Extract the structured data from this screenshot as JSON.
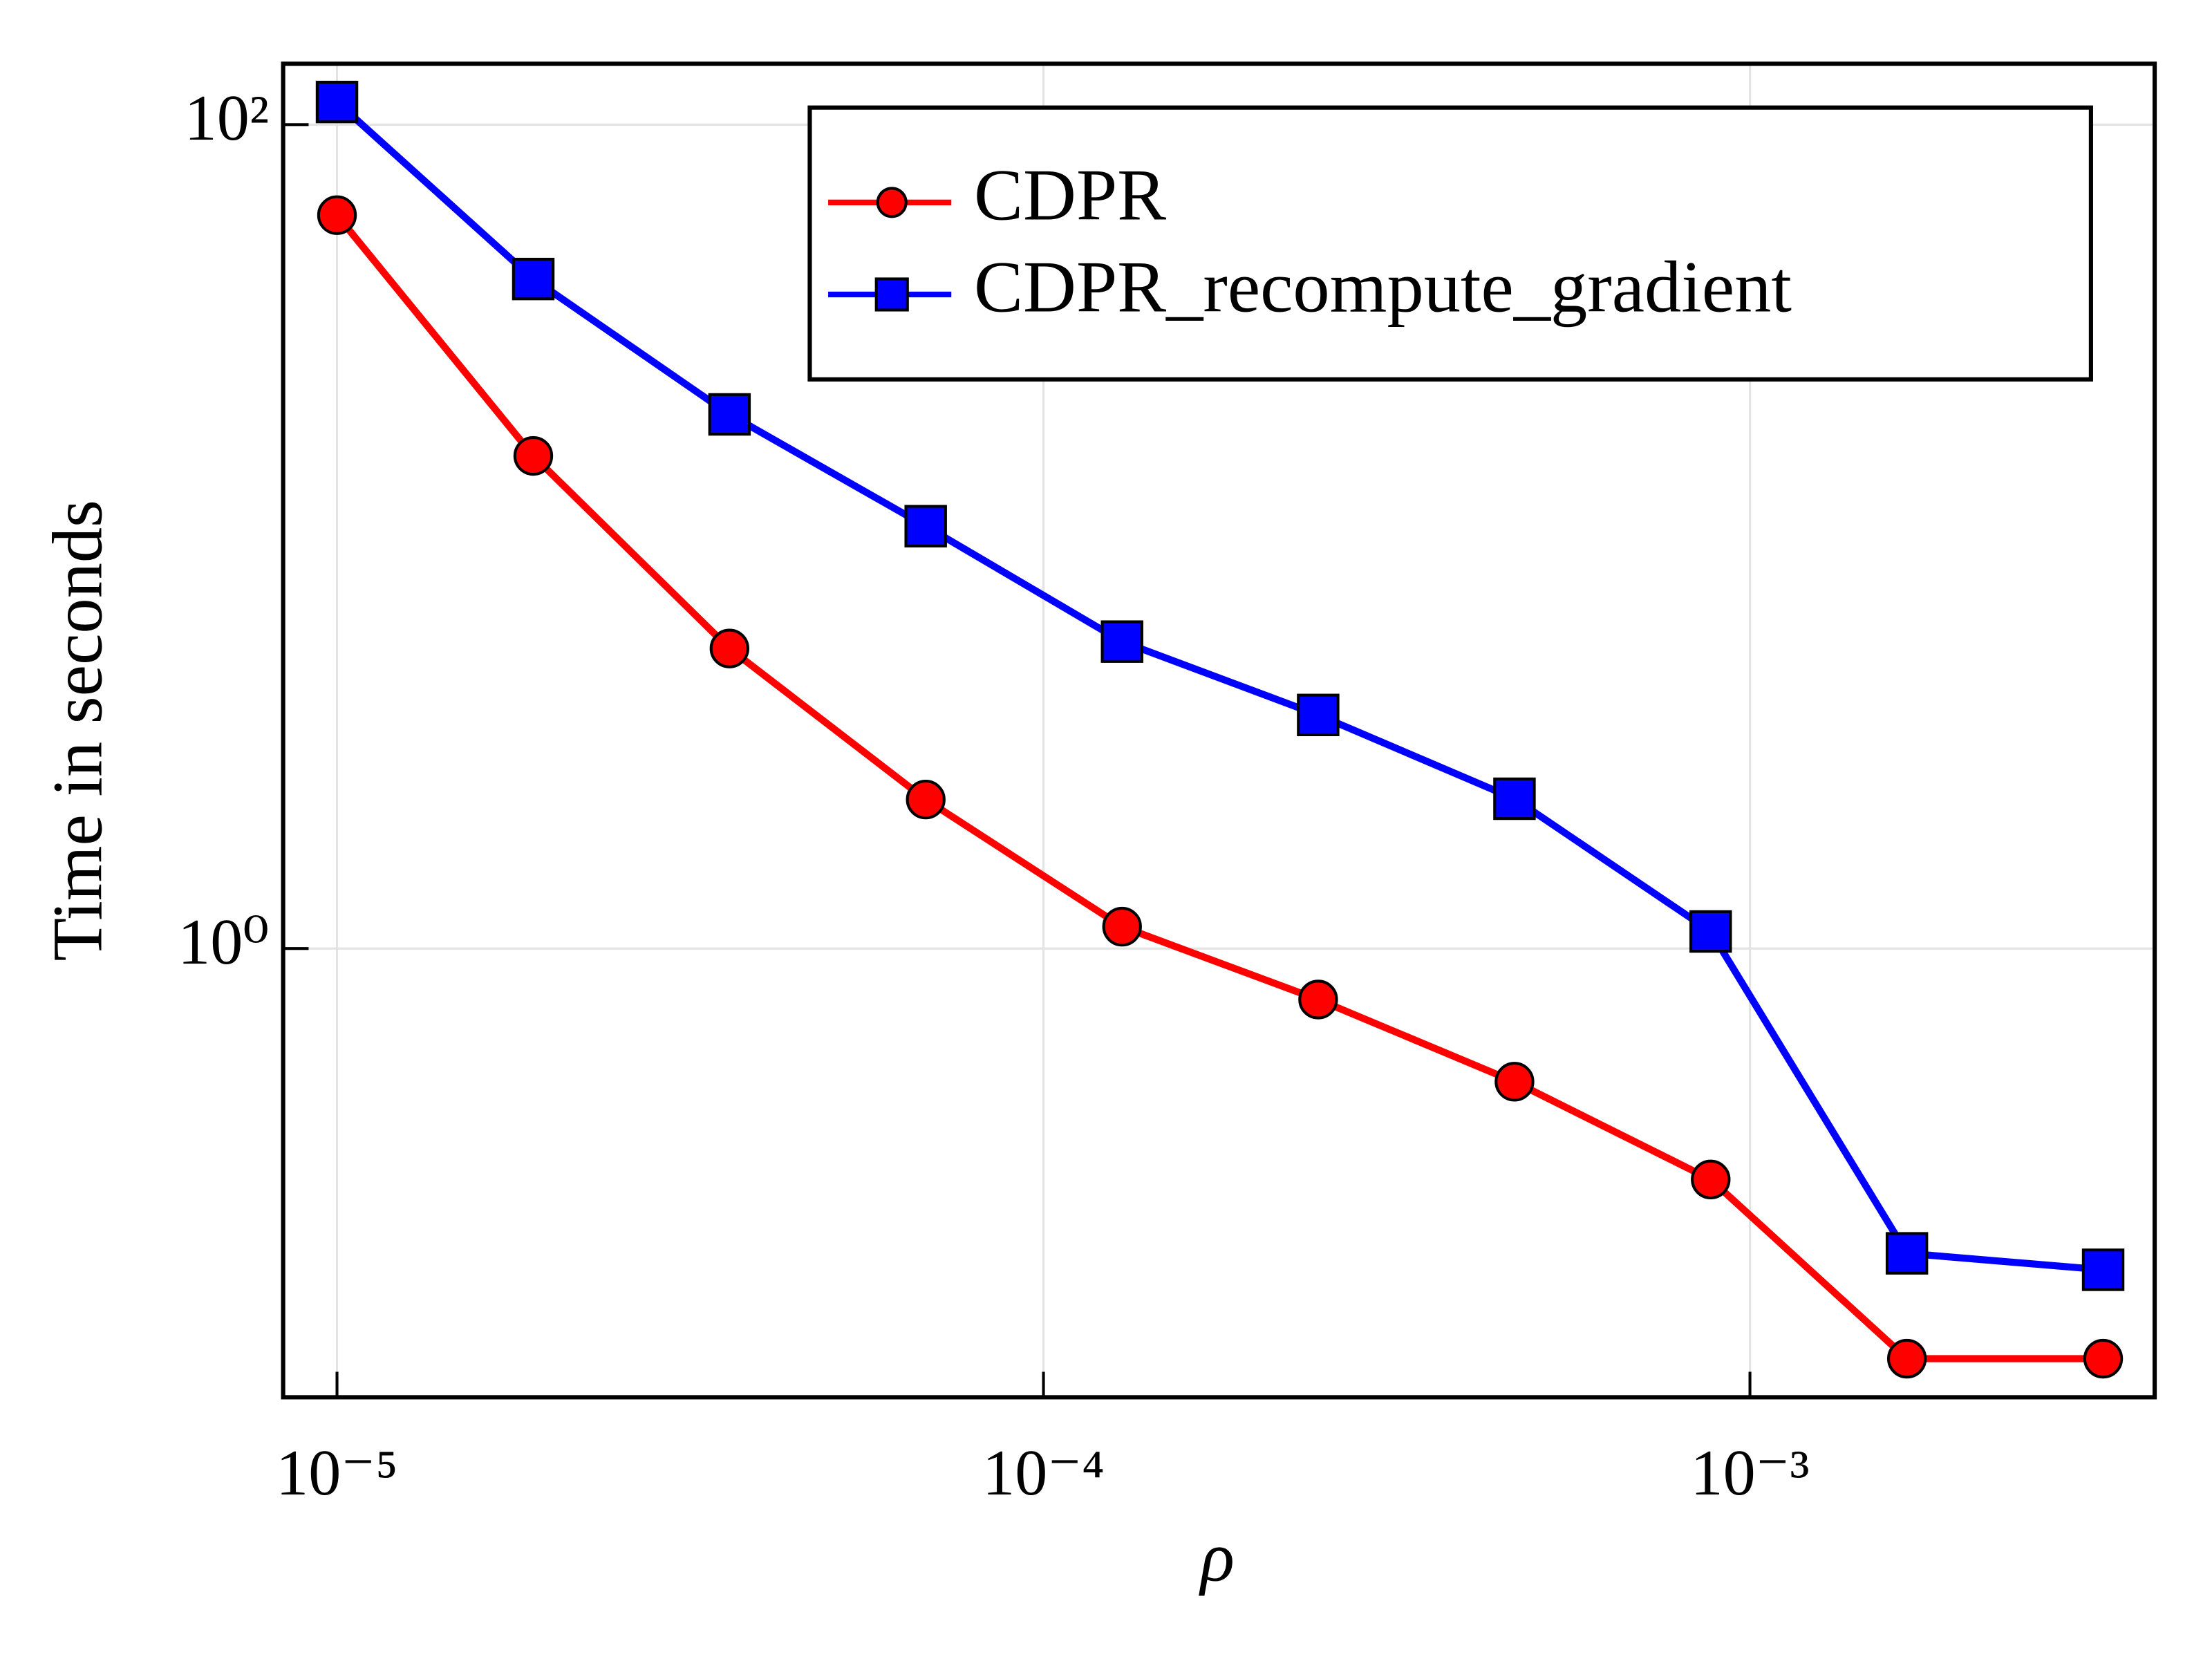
{
  "chart_data": {
    "type": "line",
    "x_label": "ρ",
    "y_label": "Time in seconds",
    "x": [
      1e-05,
      1.896e-05,
      3.594e-05,
      6.813e-05,
      0.0001292,
      0.0002448,
      0.0004642,
      0.0008799,
      0.001668,
      0.003162
    ],
    "series": [
      {
        "name": "CDPR",
        "color": "#ff0000",
        "marker": "circle",
        "values": [
          60.3,
          15.7,
          5.35,
          2.3,
          1.13,
          0.752,
          0.475,
          0.275,
          0.101,
          0.101
        ]
      },
      {
        "name": "CDPR_recompute_gradient",
        "color": "#0000ff",
        "marker": "square",
        "values": [
          113.5,
          42.2,
          19.8,
          10.6,
          5.56,
          3.69,
          2.31,
          1.1,
          0.182,
          0.166
        ]
      }
    ],
    "xlim": [
      8.39e-06,
      0.00374
    ],
    "ylim": [
      0.0814,
      140.6
    ],
    "xticks": [
      {
        "value": 1e-05,
        "label": "10⁻⁵"
      },
      {
        "value": 0.0001,
        "label": "10⁻⁴"
      },
      {
        "value": 0.001,
        "label": "10⁻³"
      }
    ],
    "yticks": [
      {
        "value": 1,
        "label": "10⁰"
      },
      {
        "value": 100,
        "label": "10²"
      }
    ],
    "x_log": true,
    "y_log": true,
    "grid": true,
    "legend": "top right"
  }
}
